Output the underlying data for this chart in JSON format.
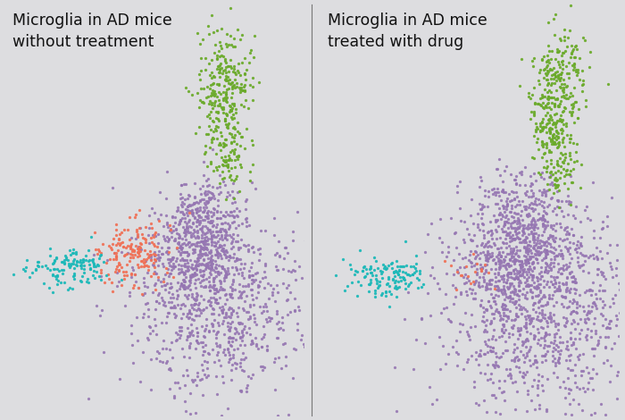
{
  "title_left": "Microglia in AD mice\nwithout treatment",
  "title_right": "Microglia in AD mice\ntreated with drug",
  "bg_color": "#dddde0",
  "divider_color": "#777777",
  "title_fontsize": 12.5,
  "colors": {
    "purple": "#9575b2",
    "green": "#6aaa2a",
    "salmon": "#f07055",
    "teal": "#1ab8b8"
  },
  "dot_size": 5.5
}
